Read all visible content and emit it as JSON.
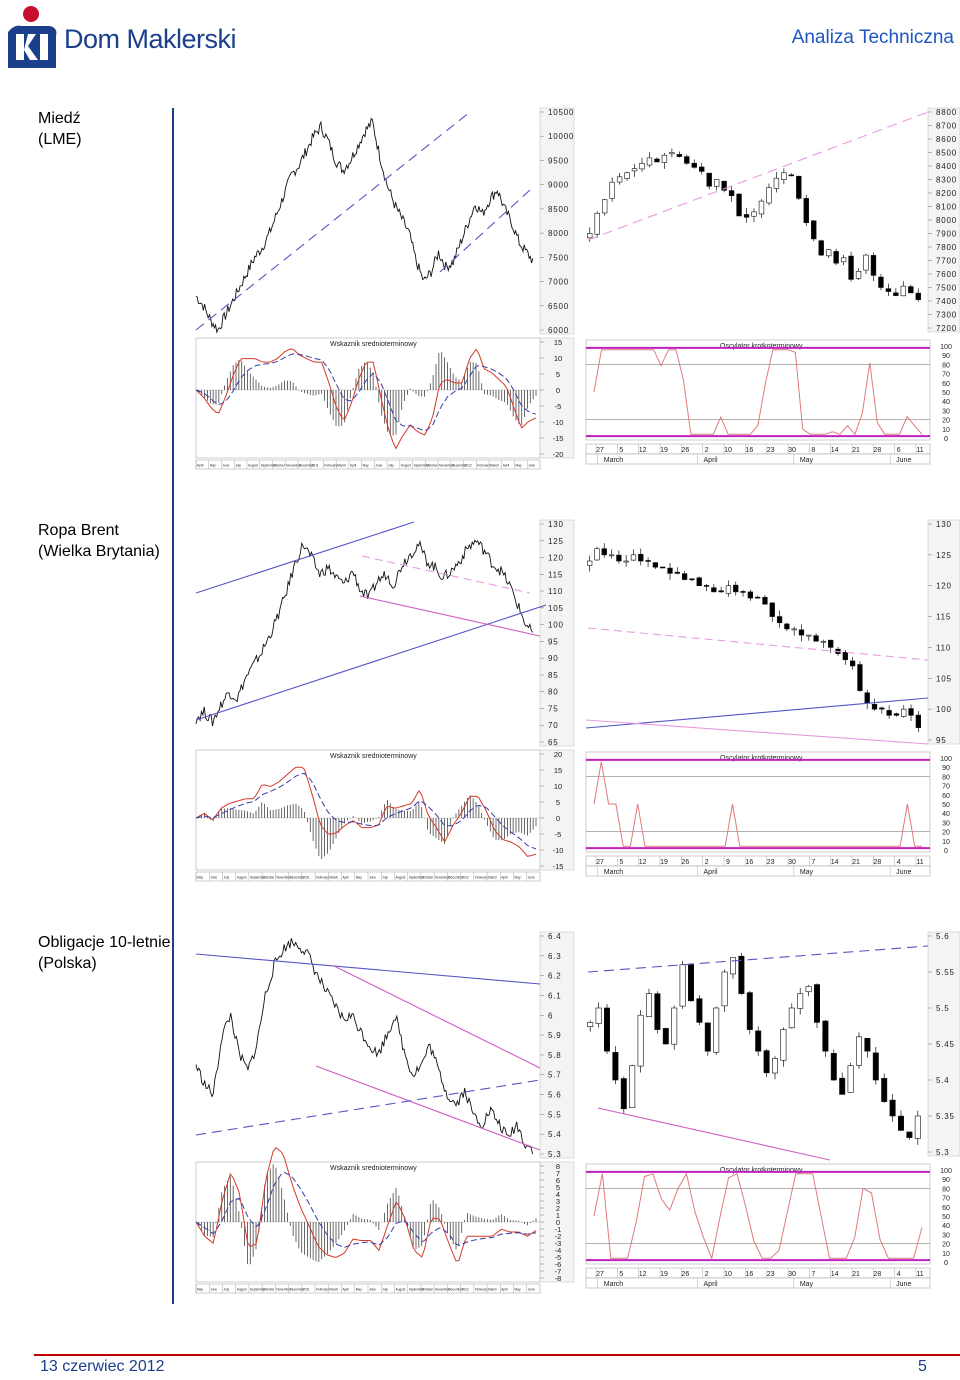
{
  "header": {
    "brand": "Dom Maklerski",
    "section": "Analiza Techniczna"
  },
  "footer": {
    "date": "13 czerwiec 2012",
    "page": "5"
  },
  "panels": [
    {
      "label_line1": "Miedź",
      "label_line2": "(LME)",
      "indicator_title": "Wskaznik srednioterminowy",
      "oscillator_title": "Oscylator krotkoterminowy"
    },
    {
      "label_line1": "Ropa Brent",
      "label_line2": "(Wielka Brytania)",
      "indicator_title": "Wskaznik srednioterminowy",
      "oscillator_title": "Oscylator krotkoterminowy"
    },
    {
      "label_line1": "Obligacje 10-letnie",
      "label_line2": "(Polska)",
      "indicator_title": "Wskaznik srednioterminowy",
      "oscillator_title": "Oscylator krotkoterminowy"
    }
  ],
  "chart_data": [
    {
      "type": "line",
      "instrument": "Miedź (LME)",
      "long_term_axis": [
        10500,
        10000,
        9500,
        9000,
        8500,
        8000,
        7500,
        7000,
        6500,
        6000
      ],
      "short_term_axis": [
        8800,
        8700,
        8600,
        8500,
        8400,
        8300,
        8200,
        8100,
        8000,
        7900,
        7800,
        7700,
        7600,
        7500,
        7400,
        7300,
        7200
      ],
      "indicator_axis": [
        15,
        10,
        5,
        0,
        -5,
        -10,
        -15,
        -20
      ],
      "oscillator_axis": [
        100,
        90,
        80,
        70,
        60,
        50,
        40,
        30,
        20,
        10,
        0
      ],
      "date_ticks": [
        "27",
        "5",
        "12",
        "19",
        "26",
        "2",
        "10",
        "16",
        "23",
        "30",
        "8",
        "14",
        "21",
        "28",
        "6",
        "11"
      ],
      "months": [
        "March",
        "April",
        "May",
        "June"
      ],
      "long_term_series": [
        6700,
        6500,
        6200,
        6000,
        6300,
        6600,
        6900,
        7200,
        7500,
        7700,
        8000,
        8400,
        8800,
        9200,
        9400,
        9700,
        10000,
        10200,
        9900,
        9500,
        9300,
        9500,
        9800,
        10100,
        10300,
        9600,
        9000,
        8600,
        8300,
        8000,
        7400,
        7000,
        7200,
        7600,
        7300,
        7400,
        7800,
        8200,
        8600,
        8400,
        8700,
        8900,
        8500,
        8200,
        7800,
        7600,
        7400
      ],
      "short_term_closes": [
        7900,
        8050,
        8150,
        8280,
        8320,
        8350,
        8380,
        8420,
        8460,
        8430,
        8480,
        8500,
        8470,
        8420,
        8390,
        8360,
        8250,
        8300,
        8220,
        8180,
        8030,
        8020,
        8060,
        8140,
        8240,
        8310,
        8350,
        8330,
        8160,
        7980,
        7860,
        7740,
        7780,
        7680,
        7720,
        7560,
        7620,
        7740,
        7590,
        7500,
        7470,
        7440,
        7510,
        7460,
        7410
      ]
    },
    {
      "type": "line",
      "instrument": "Ropa Brent (Wielka Brytania)",
      "long_term_axis": [
        130,
        125,
        120,
        115,
        110,
        105,
        100,
        95,
        90,
        85,
        80,
        75,
        70,
        65
      ],
      "short_term_axis": [
        130,
        125,
        120,
        115,
        110,
        105,
        100,
        95
      ],
      "indicator_axis": [
        20,
        15,
        10,
        5,
        0,
        -5,
        -10,
        -15
      ],
      "oscillator_axis": [
        100,
        90,
        80,
        70,
        60,
        50,
        40,
        30,
        20,
        10,
        0
      ],
      "date_ticks": [
        "27",
        "5",
        "12",
        "19",
        "26",
        "2",
        "9",
        "16",
        "23",
        "30",
        "7",
        "14",
        "21",
        "28",
        "4",
        "11"
      ],
      "months": [
        "March",
        "April",
        "May",
        "June"
      ],
      "long_term_series": [
        72,
        74,
        71,
        76,
        80,
        78,
        84,
        88,
        92,
        97,
        103,
        110,
        118,
        124,
        120,
        115,
        117,
        114,
        112,
        116,
        110,
        108,
        113,
        115,
        112,
        118,
        121,
        124,
        119,
        117,
        114,
        116,
        119,
        123,
        125,
        122,
        118,
        116,
        112,
        106,
        100,
        97
      ],
      "short_term_closes": [
        124,
        126,
        125,
        125,
        124,
        124,
        125,
        124,
        124,
        123,
        123,
        122,
        122,
        121,
        121,
        120,
        120,
        119,
        119,
        120,
        119,
        119,
        118,
        118,
        117,
        115,
        114,
        113,
        113,
        112,
        112,
        111,
        111,
        110,
        109,
        108,
        107,
        103,
        101,
        100,
        100,
        99,
        99,
        100,
        99,
        97
      ]
    },
    {
      "type": "line",
      "instrument": "Obligacje 10-letnie (Polska)",
      "long_term_axis": [
        6.4,
        6.3,
        6.2,
        6.1,
        6.0,
        5.9,
        5.8,
        5.7,
        5.6,
        5.5,
        5.4,
        5.3
      ],
      "short_term_axis": [
        5.6,
        5.55,
        5.5,
        5.45,
        5.4,
        5.35,
        5.3
      ],
      "indicator_axis": [
        8,
        7,
        6,
        5,
        4,
        3,
        2,
        1,
        0,
        -1,
        -2,
        -3,
        -4,
        -5,
        -6,
        -7,
        -8
      ],
      "oscillator_axis": [
        100,
        90,
        80,
        70,
        60,
        50,
        40,
        30,
        20,
        10,
        0
      ],
      "date_ticks": [
        "27",
        "5",
        "12",
        "19",
        "26",
        "2",
        "10",
        "16",
        "23",
        "30",
        "7",
        "14",
        "21",
        "28",
        "4",
        "11"
      ],
      "months": [
        "March",
        "April",
        "May",
        "June"
      ],
      "long_term_series": [
        5.75,
        5.65,
        5.6,
        5.9,
        6.0,
        5.8,
        5.72,
        5.85,
        6.1,
        6.25,
        6.33,
        6.37,
        6.35,
        6.3,
        6.2,
        6.12,
        6.05,
        5.98,
        6.0,
        5.92,
        5.85,
        5.8,
        5.9,
        6.0,
        5.82,
        5.7,
        5.75,
        5.85,
        5.72,
        5.6,
        5.55,
        5.62,
        5.5,
        5.45,
        5.52,
        5.45,
        5.38,
        5.45,
        5.35,
        5.32
      ],
      "short_term_closes": [
        5.48,
        5.5,
        5.44,
        5.4,
        5.36,
        5.42,
        5.49,
        5.52,
        5.47,
        5.45,
        5.5,
        5.56,
        5.51,
        5.48,
        5.44,
        5.5,
        5.55,
        5.57,
        5.52,
        5.47,
        5.44,
        5.41,
        5.43,
        5.47,
        5.5,
        5.52,
        5.53,
        5.48,
        5.44,
        5.4,
        5.38,
        5.42,
        5.46,
        5.44,
        5.4,
        5.37,
        5.35,
        5.33,
        5.32,
        5.35
      ]
    }
  ]
}
